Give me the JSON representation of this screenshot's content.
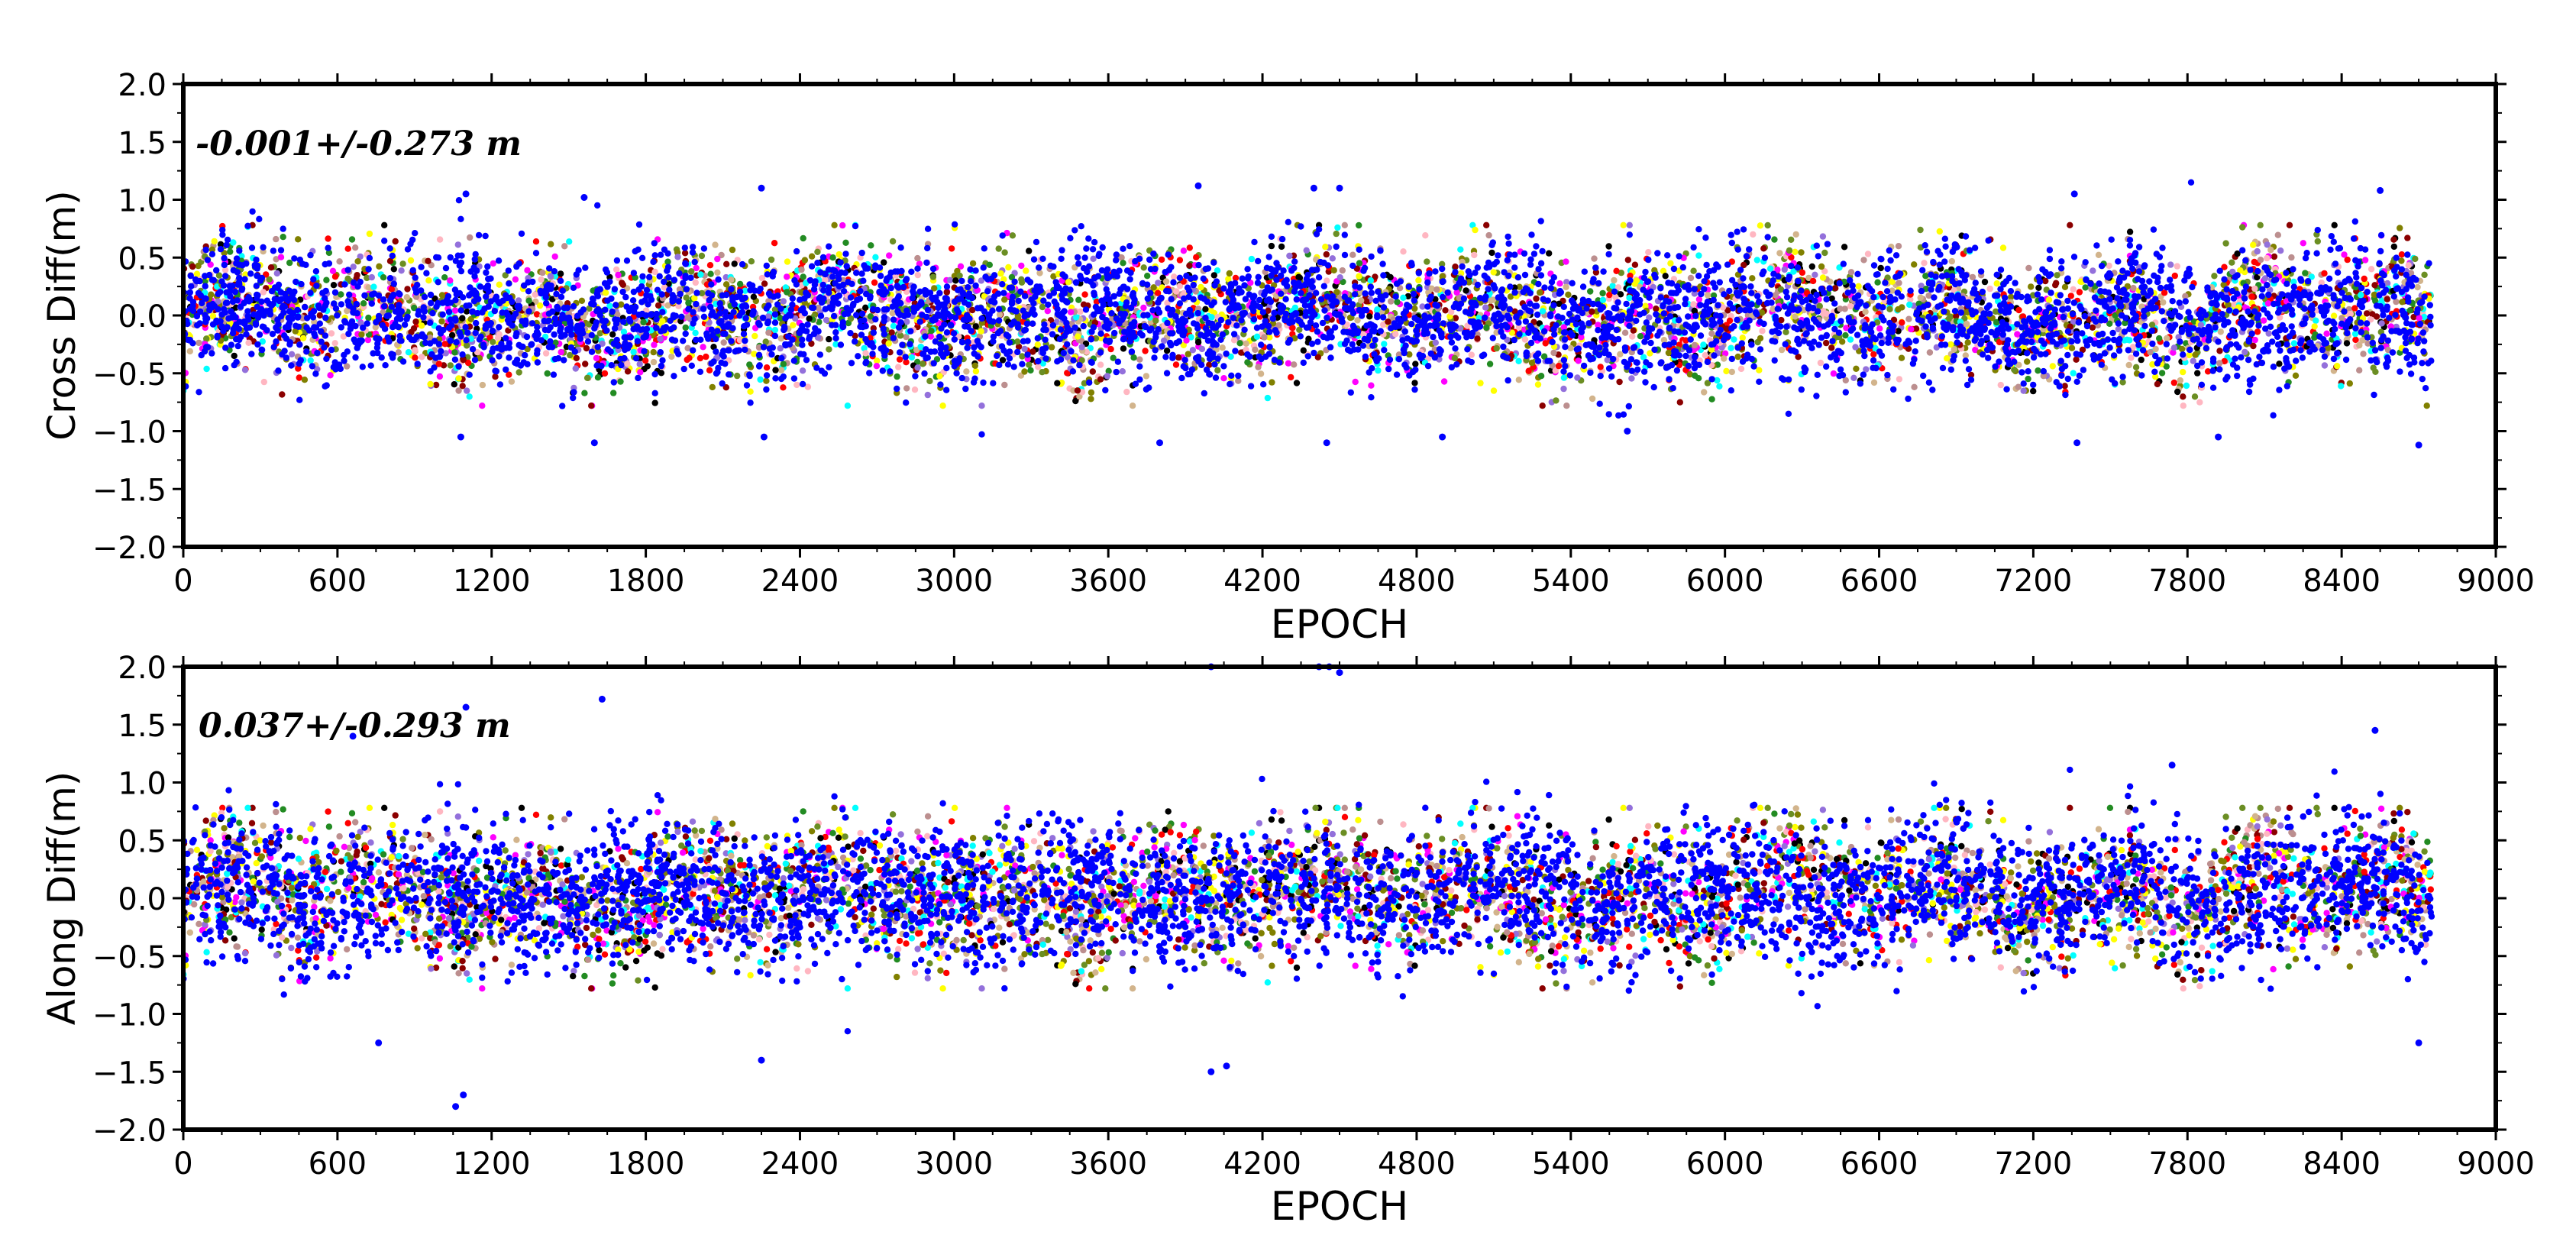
{
  "chart_data": [
    {
      "type": "scatter",
      "ylabel": "Cross Diff(m)",
      "xlabel": "EPOCH",
      "annotation": "-0.001+/-0.273 m",
      "xlim": [
        0,
        9000
      ],
      "ylim": [
        -2.0,
        2.0
      ],
      "xticks": [
        "0",
        "600",
        "1200",
        "1800",
        "2400",
        "3000",
        "3600",
        "4200",
        "4800",
        "5400",
        "6000",
        "6600",
        "7200",
        "7800",
        "8400",
        "9000"
      ],
      "yticks": [
        "2.0",
        "1.5",
        "1.0",
        "0.5",
        "0.0",
        "−0.5",
        "−1.0",
        "−1.5",
        "−2.0"
      ],
      "mean": -0.001,
      "std": 0.273,
      "data_extent": [
        0,
        8750
      ],
      "series_colors": [
        "#0000ff",
        "#ffff00",
        "#6b8e23",
        "#ffb6c1",
        "#9370db",
        "#d2b48c",
        "#228b22",
        "#ff0000",
        "#00ffff",
        "#ff00ff",
        "#8b0000",
        "#000000",
        "#bc8f8f",
        "#808000"
      ],
      "notable_points": [
        {
          "x": 1080,
          "y": -1.05
        },
        {
          "x": 1100,
          "y": 1.05
        },
        {
          "x": 1560,
          "y": 1.02
        },
        {
          "x": 1600,
          "y": -1.1
        },
        {
          "x": 2250,
          "y": 1.1
        },
        {
          "x": 2260,
          "y": -1.05
        },
        {
          "x": 3800,
          "y": -1.1
        },
        {
          "x": 3950,
          "y": 1.12
        },
        {
          "x": 4400,
          "y": 1.1
        },
        {
          "x": 4450,
          "y": -1.1
        },
        {
          "x": 4500,
          "y": 1.1
        },
        {
          "x": 4900,
          "y": -1.05
        },
        {
          "x": 5620,
          "y": -1.0
        },
        {
          "x": 7360,
          "y": 1.05
        },
        {
          "x": 7370,
          "y": -1.1
        },
        {
          "x": 7920,
          "y": -1.05
        },
        {
          "x": 8550,
          "y": 1.08
        },
        {
          "x": 8700,
          "y": -1.12
        }
      ]
    },
    {
      "type": "scatter",
      "ylabel": "Along Diff(m)",
      "xlabel": "EPOCH",
      "annotation": "0.037+/-0.293 m",
      "xlim": [
        0,
        9000
      ],
      "ylim": [
        -2.0,
        2.0
      ],
      "xticks": [
        "0",
        "600",
        "1200",
        "1800",
        "2400",
        "3000",
        "3600",
        "4200",
        "4800",
        "5400",
        "6000",
        "6600",
        "7200",
        "7800",
        "8400",
        "9000"
      ],
      "yticks": [
        "2.0",
        "1.5",
        "1.0",
        "0.5",
        "0.0",
        "−0.5",
        "−1.0",
        "−1.5",
        "−2.0"
      ],
      "mean": 0.037,
      "std": 0.293,
      "data_extent": [
        0,
        8750
      ],
      "series_colors": [
        "#0000ff",
        "#ffff00",
        "#6b8e23",
        "#ffb6c1",
        "#9370db",
        "#d2b48c",
        "#228b22",
        "#ff0000",
        "#00ffff",
        "#ff00ff",
        "#8b0000",
        "#000000",
        "#bc8f8f",
        "#808000"
      ],
      "notable_points": [
        {
          "x": 1060,
          "y": -1.8
        },
        {
          "x": 1090,
          "y": -1.7
        },
        {
          "x": 1100,
          "y": 1.65
        },
        {
          "x": 1630,
          "y": 1.72
        },
        {
          "x": 2250,
          "y": -1.4
        },
        {
          "x": 4000,
          "y": 2.0
        },
        {
          "x": 4000,
          "y": -1.5
        },
        {
          "x": 4060,
          "y": -1.45
        },
        {
          "x": 4420,
          "y": 2.0
        },
        {
          "x": 4460,
          "y": 2.0
        },
        {
          "x": 4500,
          "y": 1.95
        },
        {
          "x": 760,
          "y": -1.25
        },
        {
          "x": 660,
          "y": 1.4
        },
        {
          "x": 7740,
          "y": 1.15
        },
        {
          "x": 8530,
          "y": 1.45
        },
        {
          "x": 8700,
          "y": -1.25
        }
      ]
    }
  ]
}
